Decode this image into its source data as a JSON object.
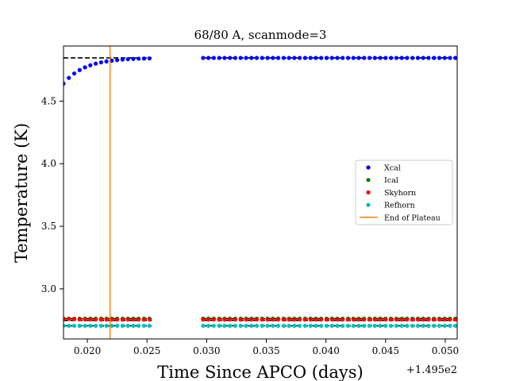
{
  "chart_data": {
    "type": "scatter",
    "title": "68/80 A, scanmode=3",
    "xlabel": "Time Since APCO (days)",
    "ylabel": "Temperature (K)",
    "x_offset_label": "+1.495e2",
    "xlim": [
      0.018,
      0.051
    ],
    "ylim": [
      2.6,
      4.94
    ],
    "x_ticks": [
      0.02,
      0.025,
      0.03,
      0.035,
      0.04,
      0.045,
      0.05
    ],
    "x_tick_labels": [
      "0.020",
      "0.025",
      "0.030",
      "0.035",
      "0.040",
      "0.045",
      "0.050"
    ],
    "y_ticks": [
      3.0,
      3.5,
      4.0,
      4.5
    ],
    "y_tick_labels": [
      "3.0",
      "3.5",
      "4.0",
      "4.5"
    ],
    "grid": false,
    "legend_position": "center-right",
    "segments": [
      [
        0.018,
        0.0254
      ],
      [
        0.0297,
        0.051
      ]
    ],
    "point_step": 0.00045,
    "series": [
      {
        "name": "Xcal",
        "color": "#0000ff",
        "plateau": 4.845,
        "start": 4.64,
        "tau": 0.0018
      },
      {
        "name": "Ical",
        "color": "#008000",
        "plateau": 2.762,
        "start": 2.762,
        "tau": 0.001
      },
      {
        "name": "Skyhorn",
        "color": "#ff0000",
        "plateau": 2.755,
        "start": 2.762,
        "tau": 0.001
      },
      {
        "name": "Refhorn",
        "color": "#00bfbf",
        "plateau": 2.705,
        "start": 2.705,
        "tau": 0.001
      }
    ],
    "reference_lines": [
      4.845,
      2.762,
      2.748,
      2.705
    ],
    "plateau_end": {
      "name": "End of Plateau",
      "x": 0.0219,
      "color": "#ff7f0e"
    }
  }
}
